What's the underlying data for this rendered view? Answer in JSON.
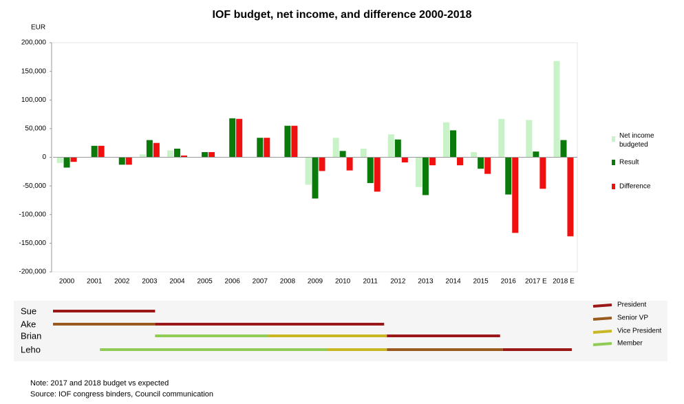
{
  "chart_data": {
    "type": "bar",
    "title": "IOF budget, net income, and difference 2000-2018",
    "y_label": "EUR",
    "categories": [
      "2000",
      "2001",
      "2002",
      "2003",
      "2004",
      "2005",
      "2006",
      "2007",
      "2008",
      "2009",
      "2010",
      "2011",
      "2012",
      "2013",
      "2014",
      "2015",
      "2016",
      "2017 E",
      "2018 E"
    ],
    "series": [
      {
        "name": "Net income budgeted",
        "color": "#c9f2c9",
        "values": [
          -10000,
          0,
          0,
          5000,
          12000,
          0,
          0,
          0,
          0,
          -48000,
          34000,
          15000,
          40000,
          -52000,
          61000,
          9000,
          67000,
          65000,
          168000
        ]
      },
      {
        "name": "Result",
        "color": "#0a7a0a",
        "values": [
          -18000,
          20000,
          -13000,
          30000,
          15000,
          9000,
          68000,
          34000,
          55000,
          -72000,
          11000,
          -45000,
          31000,
          -66000,
          47000,
          -20000,
          -65000,
          10000,
          30000
        ]
      },
      {
        "name": "Difference",
        "color": "#f01010",
        "values": [
          -8000,
          20000,
          -13000,
          25000,
          3000,
          9000,
          67000,
          34000,
          55000,
          -24000,
          -23000,
          -60000,
          -9000,
          -14000,
          -14000,
          -29000,
          -132000,
          -55000,
          -138000
        ]
      }
    ],
    "ylim": [
      -200000,
      200000
    ],
    "yticks": [
      {
        "value": -200000,
        "label": "-200,000"
      },
      {
        "value": -150000,
        "label": "-150,000"
      },
      {
        "value": -100000,
        "label": "-100,000"
      },
      {
        "value": -50000,
        "label": "-50,000"
      },
      0,
      {
        "value": 50000,
        "label": "50,000"
      },
      {
        "value": 100000,
        "label": "100,000"
      },
      {
        "value": 150000,
        "label": "150,000"
      },
      {
        "value": 200000,
        "label": "200,000"
      }
    ],
    "negative_tick_color": "#cc0000",
    "grid": false,
    "legend": "right"
  },
  "timeline": {
    "roles": [
      {
        "name": "President",
        "color": "#9b1818"
      },
      {
        "name": "Senior VP",
        "color": "#9a5a1e"
      },
      {
        "name": "Vice President",
        "color": "#c9b623"
      },
      {
        "name": "Member",
        "color": "#8fcb55"
      }
    ],
    "people": [
      {
        "name": "Sue",
        "segments": [
          {
            "role": 0,
            "start": 2000,
            "end": 2003.7
          }
        ]
      },
      {
        "name": "Ake",
        "segments": [
          {
            "role": 1,
            "start": 2000,
            "end": 2003.7
          },
          {
            "role": 0,
            "start": 2003.7,
            "end": 2012
          }
        ]
      },
      {
        "name": "Brian",
        "segments": [
          {
            "role": 3,
            "start": 2003.7,
            "end": 2007.8
          },
          {
            "role": 2,
            "start": 2007.8,
            "end": 2012.1
          },
          {
            "role": 0,
            "start": 2012.1,
            "end": 2016.2
          }
        ]
      },
      {
        "name": "Leho",
        "segments": [
          {
            "role": 3,
            "start": 2001.7,
            "end": 2009.95
          },
          {
            "role": 2,
            "start": 2009.95,
            "end": 2012.1
          },
          {
            "role": 1,
            "start": 2012.1,
            "end": 2016.3
          },
          {
            "role": 0,
            "start": 2016.3,
            "end": 2018.8
          }
        ]
      }
    ]
  },
  "notes": [
    "Note: 2017 and 2018 budget vs expected",
    "Source: IOF congress binders, Council communication"
  ]
}
